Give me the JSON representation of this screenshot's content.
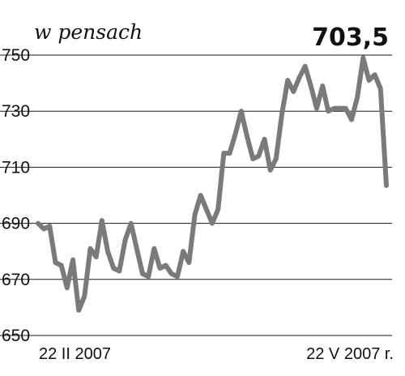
{
  "chart_data": {
    "type": "line",
    "unit_label": "w pensach",
    "last_value_label": "703,5",
    "y_ticks": [
      "750",
      "730",
      "710",
      "690",
      "670",
      "650"
    ],
    "ylim": [
      650,
      750
    ],
    "x_start_label": "22 II 2007",
    "x_end_label": "22 V 2007 r.",
    "grid": true,
    "series": [
      {
        "values": [
          690,
          688,
          689,
          676,
          675,
          667,
          677,
          659,
          664,
          681,
          678,
          691,
          680,
          674,
          673,
          684,
          690,
          681,
          672,
          671,
          681,
          674,
          675,
          672,
          671,
          680,
          676,
          693,
          700,
          695,
          690,
          695,
          715,
          715,
          722,
          730,
          721,
          713,
          714,
          720,
          709,
          713,
          729,
          741,
          737,
          742,
          746,
          739,
          731,
          739,
          730,
          731,
          731,
          731,
          727,
          735,
          749,
          741,
          743,
          738,
          703.5
        ]
      }
    ]
  }
}
